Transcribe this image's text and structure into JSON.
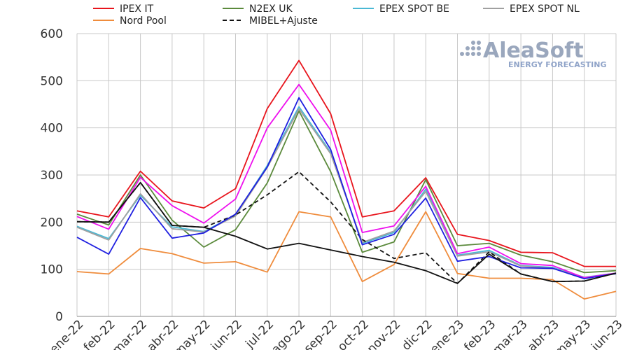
{
  "logo": {
    "main": "AleaSoft",
    "sub": "ENERGY FORECASTING"
  },
  "chart_data": {
    "type": "line",
    "title": "",
    "xlabel": "",
    "ylabel": "",
    "ylim": [
      0,
      600
    ],
    "yticks": [
      0,
      100,
      200,
      300,
      400,
      500,
      600
    ],
    "grid": true,
    "legend_position": "top",
    "categories": [
      "ene-22",
      "feb-22",
      "mar-22",
      "abr-22",
      "may-22",
      "jun-22",
      "jul-22",
      "ago-22",
      "sep-22",
      "oct-22",
      "nov-22",
      "dic-22",
      "ene-23",
      "feb-23",
      "mar-23",
      "abr-23",
      "may-23",
      "jun-23"
    ],
    "series": [
      {
        "name": "IPEX IT",
        "color": "#e8141c",
        "dash": false,
        "legend": true,
        "values": [
          224,
          211,
          308,
          245,
          230,
          271,
          441,
          543,
          430,
          211,
          224,
          294,
          174,
          161,
          136,
          135,
          106,
          106
        ]
      },
      {
        "name": "N2EX UK",
        "color": "#5b8a3c",
        "dash": false,
        "legend": true,
        "values": [
          217,
          194,
          300,
          204,
          147,
          184,
          283,
          436,
          307,
          136,
          158,
          290,
          150,
          155,
          130,
          116,
          93,
          97
        ]
      },
      {
        "name": "EPEX SPOT BE",
        "color": "#4ab8d4",
        "dash": false,
        "legend": true,
        "values": [
          191,
          165,
          257,
          190,
          180,
          215,
          320,
          445,
          348,
          155,
          178,
          270,
          130,
          140,
          108,
          104,
          83,
          92
        ]
      },
      {
        "name": "EPEX SPOT NL",
        "color": "#a0a0a0",
        "dash": false,
        "legend": true,
        "values": [
          189,
          162,
          260,
          186,
          179,
          213,
          316,
          440,
          345,
          157,
          181,
          265,
          128,
          137,
          107,
          102,
          82,
          90
        ]
      },
      {
        "name": "Nord Pool",
        "color": "#ef8c3c",
        "dash": false,
        "legend": true,
        "values": [
          95,
          90,
          144,
          133,
          113,
          116,
          94,
          222,
          211,
          74,
          110,
          222,
          91,
          81,
          81,
          78,
          37,
          53
        ]
      },
      {
        "name": "MIBEL+Ajuste",
        "color": "#111111",
        "dash": true,
        "legend": true,
        "values": [
          201,
          200,
          284,
          193,
          189,
          215,
          258,
          307,
          243,
          163,
          123,
          135,
          70,
          137,
          90,
          74,
          75,
          92
        ]
      },
      {
        "name": "",
        "color": "#ee10ee",
        "dash": false,
        "legend": false,
        "values": [
          212,
          185,
          295,
          235,
          198,
          249,
          400,
          492,
          395,
          178,
          192,
          276,
          133,
          147,
          112,
          108,
          82,
          92
        ]
      },
      {
        "name": "",
        "color": "#1f1fe0",
        "dash": false,
        "legend": false,
        "values": [
          168,
          132,
          252,
          166,
          177,
          217,
          317,
          464,
          354,
          152,
          174,
          251,
          117,
          127,
          103,
          102,
          80,
          91
        ]
      },
      {
        "name": "",
        "color": "#111111",
        "dash": false,
        "legend": false,
        "values": [
          201,
          200,
          284,
          193,
          189,
          170,
          143,
          155,
          141,
          127,
          115,
          97,
          70,
          132,
          90,
          74,
          75,
          92
        ]
      }
    ]
  }
}
